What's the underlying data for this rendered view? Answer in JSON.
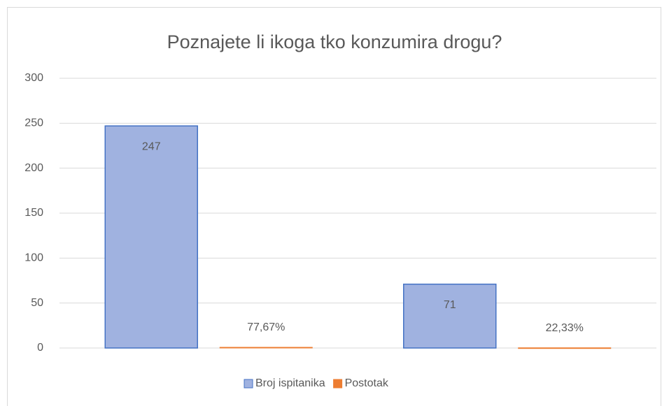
{
  "chart_data": {
    "type": "bar",
    "title": "Poznajete li ikoga tko konzumira drogu?",
    "categories": [
      null,
      null
    ],
    "series": [
      {
        "name": "Broj ispitanika",
        "color": "#a0b2e0",
        "values": [
          247,
          71
        ]
      },
      {
        "name": "Postotak",
        "color": "#ed7d31",
        "values": [
          0.7767,
          0.2233
        ],
        "value_labels": [
          "77,67%",
          "22,33%"
        ]
      }
    ],
    "ylim": [
      0,
      300
    ],
    "yticks": [
      0,
      50,
      100,
      150,
      200,
      250,
      300
    ],
    "grid": true,
    "legend": "bottom"
  }
}
